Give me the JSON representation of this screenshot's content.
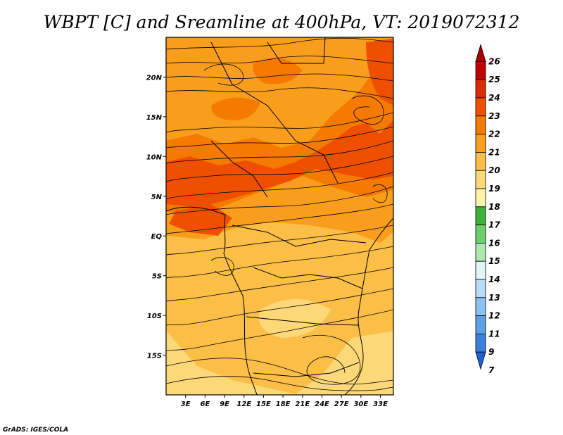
{
  "title": "WBPT [C] and Sreamline at 400hPa, VT: 2019072312",
  "credit": "GrADS: IGES/COLA",
  "map": {
    "lon_range": [
      0,
      35
    ],
    "lat_range": [
      -20,
      25
    ],
    "lon_ticks": [
      "3E",
      "6E",
      "9E",
      "12E",
      "15E",
      "18E",
      "21E",
      "24E",
      "27E",
      "30E",
      "33E"
    ],
    "lon_tick_values": [
      3,
      6,
      9,
      12,
      15,
      18,
      21,
      24,
      27,
      30,
      33
    ],
    "lat_ticks": [
      "20N",
      "15N",
      "10N",
      "5N",
      "EQ",
      "5S",
      "10S",
      "15S"
    ],
    "lat_tick_values": [
      20,
      15,
      10,
      5,
      0,
      -5,
      -10,
      -15
    ]
  },
  "colorbar": {
    "levels": [
      "26",
      "25",
      "24",
      "23",
      "22",
      "21",
      "20",
      "19",
      "18",
      "17",
      "16",
      "15",
      "14",
      "13",
      "12",
      "11",
      "9",
      "7"
    ],
    "colors": [
      "#a50000",
      "#c00000",
      "#dc2a00",
      "#ee5000",
      "#f57a00",
      "#f99e1c",
      "#fbbe46",
      "#fdd878",
      "#fef3ab",
      "#3cb23c",
      "#6cce6c",
      "#aee6ae",
      "#e0f6f6",
      "#b8dcf6",
      "#8cc2f2",
      "#5ea0e8",
      "#3a80de",
      "#1f62d2"
    ]
  }
}
